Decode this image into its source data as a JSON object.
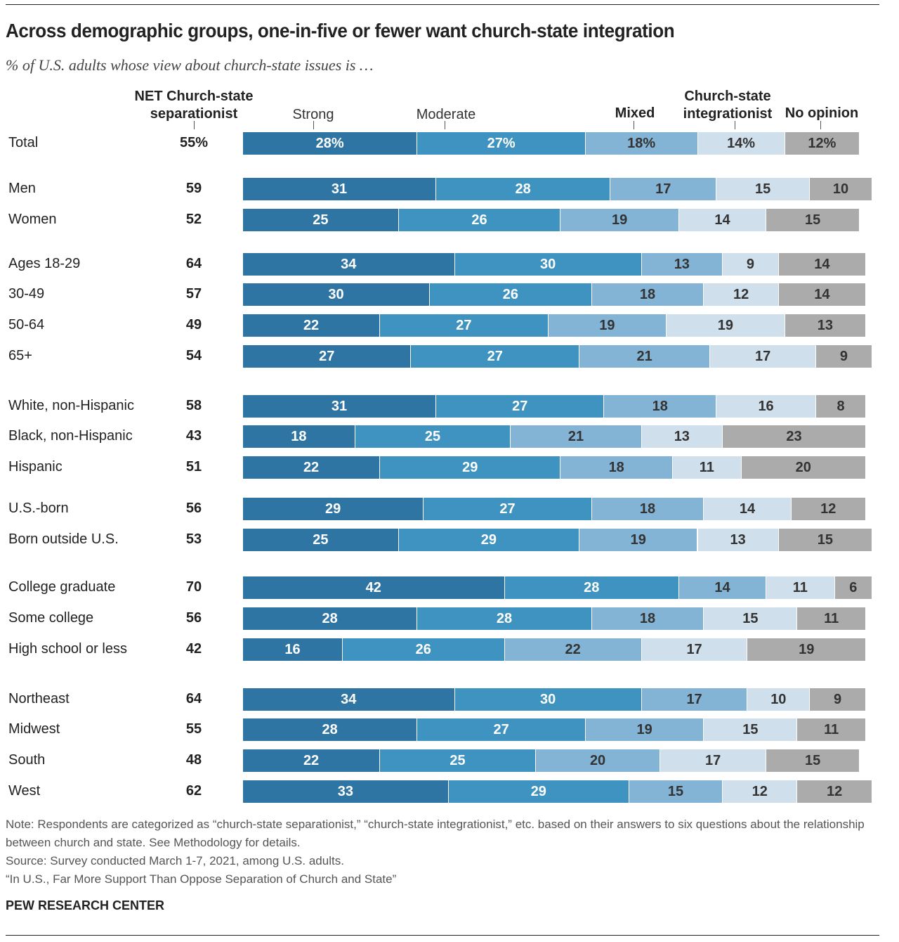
{
  "title": "Across demographic groups, one-in-five or fewer want church-state integration",
  "subtitle": "% of U.S. adults whose view about church-state issues is …",
  "chart_data": {
    "type": "bar",
    "orientation": "horizontal-stacked",
    "headers": {
      "net": "NET Church-state separationist",
      "strong": "Strong",
      "moderate": "Moderate",
      "mixed": "Mixed",
      "integ": "Church-state integrationist",
      "noop": "No opinion"
    },
    "colors": {
      "strong": "#2f75a4",
      "moderate": "#3f93c1",
      "mixed": "#83b3d5",
      "integ": "#cfe0ec",
      "noop": "#ababac"
    },
    "categories": [
      "Total",
      "Men",
      "Women",
      "Ages 18-29",
      "30-49",
      "50-64",
      "65+",
      "White, non-Hispanic",
      "Black, non-Hispanic",
      "Hispanic",
      "U.S.-born",
      "Born outside U.S.",
      "College graduate",
      "Some college",
      "High school or less",
      "Northeast",
      "Midwest",
      "South",
      "West"
    ],
    "net": [
      "55%",
      "59",
      "52",
      "64",
      "57",
      "49",
      "54",
      "58",
      "43",
      "51",
      "56",
      "53",
      "70",
      "56",
      "42",
      "64",
      "55",
      "48",
      "62"
    ],
    "series": [
      {
        "name": "Strong",
        "key": "strong",
        "values": [
          28,
          31,
          25,
          34,
          30,
          22,
          27,
          31,
          18,
          22,
          29,
          25,
          42,
          28,
          16,
          34,
          28,
          22,
          33
        ]
      },
      {
        "name": "Moderate",
        "key": "moderate",
        "values": [
          27,
          28,
          26,
          30,
          26,
          27,
          27,
          27,
          25,
          29,
          27,
          29,
          28,
          28,
          26,
          30,
          27,
          25,
          29
        ]
      },
      {
        "name": "Mixed",
        "key": "mixed",
        "values": [
          18,
          17,
          19,
          13,
          18,
          19,
          21,
          18,
          21,
          18,
          18,
          19,
          14,
          18,
          22,
          17,
          19,
          20,
          15
        ]
      },
      {
        "name": "Church-state integrationist",
        "key": "integ",
        "values": [
          14,
          15,
          14,
          9,
          12,
          19,
          17,
          16,
          13,
          11,
          14,
          13,
          11,
          15,
          17,
          10,
          15,
          17,
          12
        ]
      },
      {
        "name": "No opinion",
        "key": "noop",
        "values": [
          12,
          10,
          15,
          14,
          14,
          13,
          9,
          8,
          23,
          20,
          12,
          15,
          6,
          11,
          19,
          9,
          11,
          15,
          12
        ]
      }
    ]
  },
  "notes": {
    "note": "Note: Respondents are categorized as “church-state separationist,” “church-state integrationist,” etc. based on their answers to six questions about the relationship between church and state. See Methodology for details.",
    "source": "Source: Survey conducted March 1-7, 2021, among U.S. adults.",
    "report": "“In U.S., Far More Support Than Oppose Separation of Church and State”",
    "brand": "PEW RESEARCH CENTER"
  }
}
